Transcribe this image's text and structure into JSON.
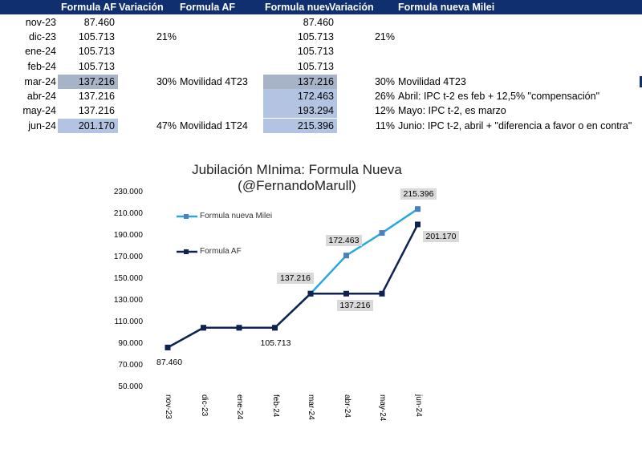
{
  "header": {
    "col_af": "Formula AF",
    "col_var1": "Variación",
    "col_af2": "Formula AF",
    "col_nueva": "Formula nueva Milei",
    "col_var2": "Variación",
    "col_nueva2": "Formula nueva Milei"
  },
  "rows": [
    {
      "date": "nov-23",
      "af": "87.460",
      "var1": "",
      "note1": "",
      "nueva": "87.460",
      "var2": "",
      "note2": ""
    },
    {
      "date": "dic-23",
      "af": "105.713",
      "var1": "21%",
      "note1": "",
      "nueva": "105.713",
      "var2": "21%",
      "note2": ""
    },
    {
      "date": "ene-24",
      "af": "105.713",
      "var1": "",
      "note1": "",
      "nueva": "105.713",
      "var2": "",
      "note2": ""
    },
    {
      "date": "feb-24",
      "af": "105.713",
      "var1": "",
      "note1": "",
      "nueva": "105.713",
      "var2": "",
      "note2": ""
    },
    {
      "date": "mar-24",
      "af": "137.216",
      "var1": "30%",
      "note1": "Movilidad 4T23",
      "nueva": "137.216",
      "var2": "30%",
      "note2": "Movilidad 4T23"
    },
    {
      "date": "abr-24",
      "af": "137.216",
      "var1": "",
      "note1": "",
      "nueva": "172.463",
      "var2": "26%",
      "note2": "Abril: IPC t-2 es feb + 12,5% \"compensación\""
    },
    {
      "date": "may-24",
      "af": "137.216",
      "var1": "",
      "note1": "",
      "nueva": "193.294",
      "var2": "12%",
      "note2": "Mayo: IPC t-2, es  marzo"
    },
    {
      "date": "jun-24",
      "af": "201.170",
      "var1": "47%",
      "note1": "Movilidad 1T24",
      "nueva": "215.396",
      "var2": "11%",
      "note2": "Junio: IPC t-2,  abril + \"diferencia a favor o en contra\""
    }
  ],
  "colors": {
    "header_bg": "#0f2f6e",
    "highlight_gray": "#a7b3c7",
    "highlight_blue": "#b3c4e3",
    "series_af": "#0f2250",
    "series_nueva": "#29a8e0"
  },
  "chart_data": {
    "type": "line",
    "title_line1": "Jubilación MInima: Formula Nueva",
    "title_line2": "(@FernandoMarull)",
    "categories": [
      "nov-23",
      "dic-23",
      "ene-24",
      "feb-24",
      "mar-24",
      "abr-24",
      "may-24",
      "jun-24"
    ],
    "series": [
      {
        "name": "Formula nueva Milei",
        "values": [
          87460,
          105713,
          105713,
          105713,
          137216,
          172463,
          193294,
          215396
        ]
      },
      {
        "name": "Formula AF",
        "values": [
          87460,
          105713,
          105713,
          105713,
          137216,
          137216,
          137216,
          201170
        ]
      }
    ],
    "ylim": [
      50000,
      230000
    ],
    "yticks": [
      "50.000",
      "70.000",
      "90.000",
      "110.000",
      "130.000",
      "150.000",
      "170.000",
      "190.000",
      "210.000",
      "230.000"
    ],
    "data_labels": [
      {
        "text": "87.460",
        "series": 1,
        "index": 0,
        "box": false
      },
      {
        "text": "105.713",
        "series": 1,
        "index": 3,
        "box": false
      },
      {
        "text": "137.216",
        "series": 0,
        "index": 4,
        "box": true
      },
      {
        "text": "172.463",
        "series": 0,
        "index": 5,
        "box": true
      },
      {
        "text": "215.396",
        "series": 0,
        "index": 7,
        "box": true
      },
      {
        "text": "137.216",
        "series": 1,
        "index": 5,
        "box": true
      },
      {
        "text": "201.170",
        "series": 1,
        "index": 7,
        "box": true
      }
    ],
    "legend": "left",
    "grid": false
  }
}
